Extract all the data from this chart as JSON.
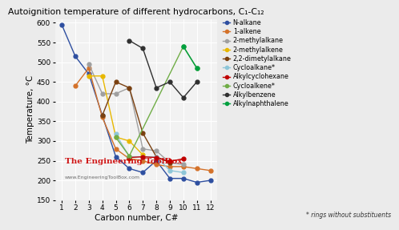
{
  "title": "Autoignition temperature of different hydrocarbons, C₁-C₁₂",
  "xlabel": "Carbon number, C#",
  "ylabel": "Temperature, °C",
  "ylim": [
    150,
    610
  ],
  "xlim": [
    0.5,
    12.5
  ],
  "yticks": [
    150,
    200,
    250,
    300,
    350,
    400,
    450,
    500,
    550,
    600
  ],
  "xticks": [
    1,
    2,
    3,
    4,
    5,
    6,
    7,
    8,
    9,
    10,
    11,
    12
  ],
  "bg_color": "#ebebeb",
  "plot_bg": "#f2f2f2",
  "watermark": "The Engineering ToolBox",
  "watermark_url": "www.EngineeringToolBox.com",
  "series": [
    {
      "label": "N-alkane",
      "color": "#2e4fa0",
      "x": [
        1,
        2,
        3,
        4,
        5,
        6,
        7,
        8,
        9,
        10,
        11,
        12
      ],
      "y": [
        595,
        515,
        470,
        365,
        260,
        230,
        220,
        250,
        205,
        205,
        195,
        200
      ]
    },
    {
      "label": "1-alkene",
      "color": "#d4722a",
      "x": [
        2,
        3,
        4,
        5,
        6,
        7,
        8,
        9,
        10,
        11,
        12
      ],
      "y": [
        440,
        485,
        360,
        280,
        255,
        250,
        240,
        235,
        235,
        230,
        225
      ]
    },
    {
      "label": "2-methylalkane",
      "color": "#a0a0a0",
      "x": [
        3,
        4,
        5,
        6,
        7,
        8,
        9,
        10
      ],
      "y": [
        495,
        420,
        420,
        435,
        280,
        275,
        245,
        240
      ]
    },
    {
      "label": "2-methylalkene",
      "color": "#e8b800",
      "x": [
        3,
        4,
        5,
        6,
        7
      ],
      "y": [
        465,
        465,
        310,
        300,
        265
      ]
    },
    {
      "label": "2,2-dimetylalkane",
      "color": "#7a4010",
      "x": [
        4,
        5,
        6,
        7,
        8,
        9
      ],
      "y": [
        365,
        450,
        435,
        320,
        260,
        245
      ]
    },
    {
      "label": "Cycloalkane*",
      "color": "#8ec6d8",
      "x": [
        5,
        6,
        7,
        8,
        9,
        10
      ],
      "y": [
        318,
        260,
        260,
        260,
        225,
        220
      ]
    },
    {
      "label": "Alkylcyclohexane",
      "color": "#c00000",
      "x": [
        6,
        7,
        8,
        9,
        10
      ],
      "y": [
        258,
        260,
        258,
        248,
        255
      ]
    },
    {
      "label": "Cycloalkene*",
      "color": "#70ad47",
      "x": [
        5,
        6,
        10,
        11
      ],
      "y": [
        309,
        262,
        540,
        485
      ]
    },
    {
      "label": "Alkylbenzene",
      "color": "#303030",
      "x": [
        6,
        7,
        8,
        9,
        10,
        11
      ],
      "y": [
        555,
        535,
        435,
        450,
        410,
        450
      ]
    },
    {
      "label": "Alkylnaphthalene",
      "color": "#00a040",
      "x": [
        10,
        11
      ],
      "y": [
        540,
        485
      ]
    }
  ],
  "note": "* rings without substituents"
}
